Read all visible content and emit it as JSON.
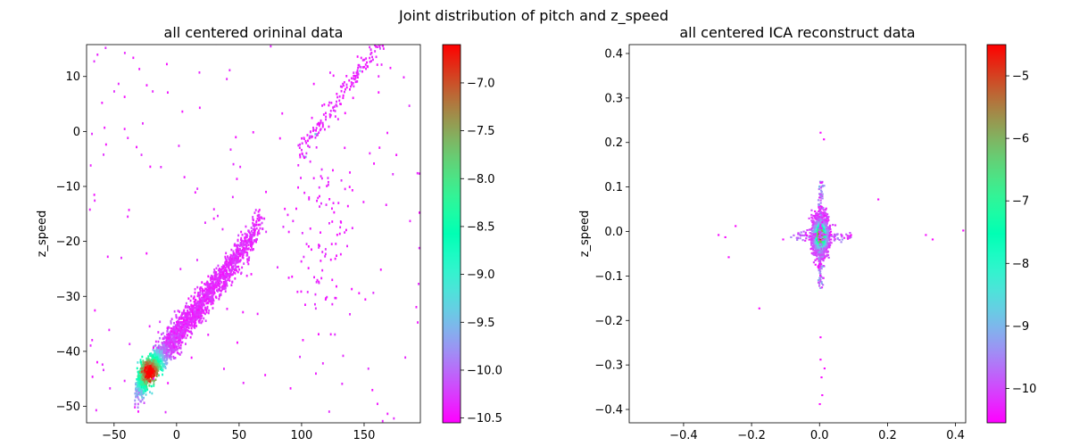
{
  "figure": {
    "suptitle": "Joint distribution of pitch and z_speed"
  },
  "chart_data": [
    {
      "type": "heatmap",
      "title": "all centered orininal data",
      "xlabel": "",
      "ylabel": "z_speed",
      "xlim": [
        -72,
        195
      ],
      "ylim": [
        -53,
        15.8
      ],
      "xticks": [
        -50,
        0,
        50,
        100,
        150
      ],
      "yticks": [
        -50,
        -40,
        -30,
        -20,
        -10,
        0,
        10
      ],
      "colorbar": {
        "min": -10.55,
        "max": -6.6,
        "ticks": [
          -10.5,
          -10.0,
          -9.5,
          -9.0,
          -8.5,
          -8.0,
          -7.5,
          -7.0
        ],
        "colormap": "rainbow"
      },
      "density_summary": [
        {
          "x": -27,
          "y": -45.5,
          "value": -6.8
        },
        {
          "x": -20,
          "y": -44,
          "value": -6.7
        },
        {
          "x": -15,
          "y": -41,
          "value": -8.3
        },
        {
          "x": 0,
          "y": -36,
          "value": -9.3
        },
        {
          "x": 20,
          "y": -30,
          "value": -9.6
        },
        {
          "x": 40,
          "y": -24,
          "value": -10.0
        },
        {
          "x": 60,
          "y": -17,
          "value": -10.5
        },
        {
          "x": 105,
          "y": -1,
          "value": -10.4
        },
        {
          "x": 135,
          "y": 8,
          "value": -10.5
        },
        {
          "x": 160,
          "y": 14,
          "value": -10.5
        }
      ],
      "grid": false
    },
    {
      "type": "heatmap",
      "title": "all centered ICA reconstruct data",
      "xlabel": "",
      "ylabel": "z_speed",
      "xlim": [
        -0.56,
        0.43
      ],
      "ylim": [
        -0.43,
        0.42
      ],
      "xticks": [
        -0.4,
        -0.2,
        0.0,
        0.2,
        0.4
      ],
      "yticks": [
        -0.4,
        -0.3,
        -0.2,
        -0.1,
        0.0,
        0.1,
        0.2,
        0.3,
        0.4
      ],
      "colorbar": {
        "min": -10.55,
        "max": -4.5,
        "ticks": [
          -10,
          -9,
          -8,
          -7,
          -6,
          -5
        ],
        "colormap": "rainbow"
      },
      "density_summary": [
        {
          "x": 0.0,
          "y": -0.01,
          "value": -4.6
        },
        {
          "x": 0.0,
          "y": 0.03,
          "value": -8.5
        },
        {
          "x": 0.0,
          "y": -0.06,
          "value": -9.0
        },
        {
          "x": -0.05,
          "y": -0.01,
          "value": -9.5
        },
        {
          "x": 0.05,
          "y": -0.01,
          "value": -9.8
        },
        {
          "x": 0.0,
          "y": 0.2,
          "value": -10.5
        },
        {
          "x": 0.0,
          "y": -0.33,
          "value": -10.5
        },
        {
          "x": -0.3,
          "y": -0.01,
          "value": -10.5
        },
        {
          "x": 0.32,
          "y": 0.0,
          "value": -10.5
        }
      ],
      "grid": false
    }
  ]
}
